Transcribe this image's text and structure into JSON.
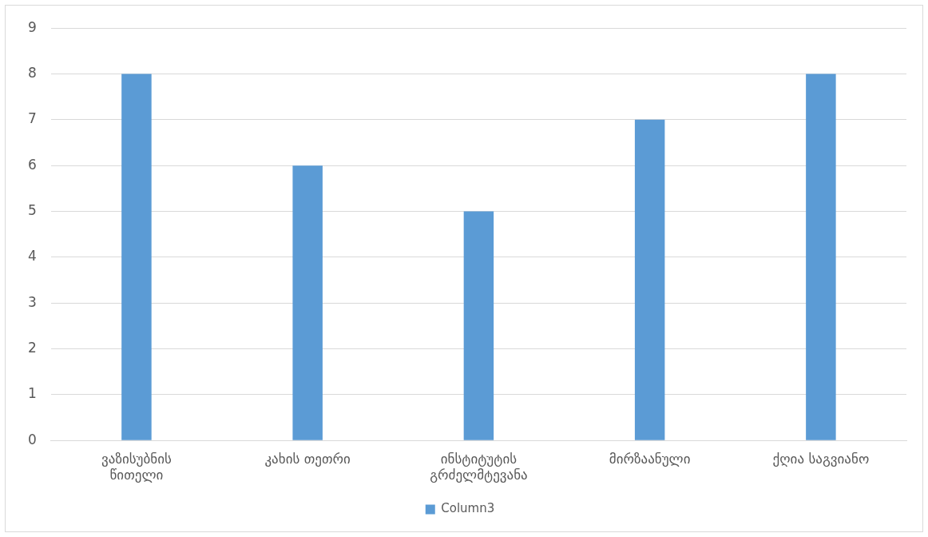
{
  "chart_data": {
    "type": "bar",
    "categories": [
      "ვაზისუბნის წითელი",
      "კახის თეთრი",
      "ინსტიტუტის გრძელმტევანა",
      "მირზაანული",
      "ქღია საგვიანო"
    ],
    "series": [
      {
        "name": "Column3",
        "color": "#5b9bd5",
        "values": [
          8,
          6,
          5,
          7,
          8
        ]
      }
    ],
    "ylim": [
      0,
      9
    ],
    "yticks": [
      0,
      1,
      2,
      3,
      4,
      5,
      6,
      7,
      8,
      9
    ],
    "grid": "y",
    "legend": "bottom"
  }
}
